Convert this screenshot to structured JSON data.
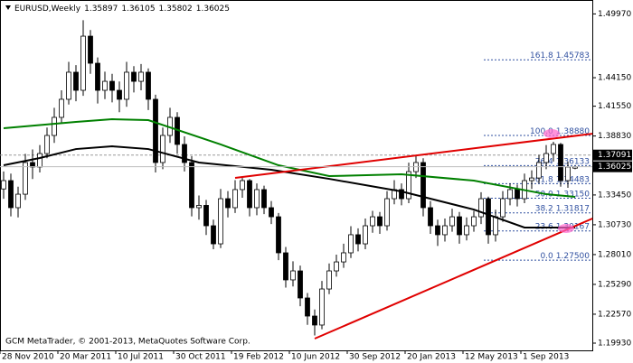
{
  "chart_data": {
    "type": "candlestick",
    "symbol": "EURUSD,Weekly",
    "footer": "GCM MetaTrader, © 2001-2013, MetaQuotes Software Corp.",
    "categories": [
      "28 Nov 2010",
      null,
      null,
      null,
      null,
      null,
      null,
      null,
      "20 Mar 2011",
      null,
      null,
      null,
      null,
      null,
      null,
      null,
      "10 Jul 2011",
      null,
      null,
      null,
      null,
      null,
      null,
      null,
      "30 Oct 2011",
      null,
      null,
      null,
      null,
      null,
      null,
      null,
      "19 Feb 2012",
      null,
      null,
      null,
      null,
      null,
      null,
      null,
      "10 Jun 2012",
      null,
      null,
      null,
      null,
      null,
      null,
      null,
      "30 Sep 2012",
      null,
      null,
      null,
      null,
      null,
      null,
      null,
      "20 Jan 2013",
      null,
      null,
      null,
      null,
      null,
      null,
      null,
      "12 May 2013",
      null,
      null,
      null,
      null,
      null,
      null,
      null,
      "1 Sep 2013",
      null,
      null,
      null,
      null,
      null,
      null,
      null
    ],
    "ohlc": {
      "open": [
        1.34,
        1.3476,
        1.3229,
        1.3352,
        1.3641,
        1.36,
        1.3723,
        1.3888,
        1.4053,
        1.4218,
        1.4465,
        1.43,
        1.4794,
        1.4547,
        1.43,
        1.4382,
        1.43,
        1.4218,
        1.4465,
        1.4382,
        1.4465,
        1.4218,
        1.3641,
        1.3888,
        1.4053,
        1.3806,
        1.3641,
        1.3229,
        1.325,
        1.3064,
        1.2899,
        1.3311,
        1.3229,
        1.3394,
        1.3476,
        1.3229,
        1.3394,
        1.3229,
        1.3146,
        1.2817,
        1.257,
        1.2652,
        1.2405,
        1.224,
        1.2158,
        1.2487,
        1.2652,
        1.2734,
        1.2817,
        1.2982,
        1.2899,
        1.3064,
        1.3146,
        1.3064,
        1.3311,
        1.3394,
        1.3311,
        1.3558,
        1.3641,
        1.3229,
        1.3064,
        1.2982,
        1.3064,
        1.3146,
        1.2982,
        1.3064,
        1.3146,
        1.3311,
        1.2982,
        1.3146,
        1.3311,
        1.3394,
        1.3311,
        1.3476,
        1.35,
        1.3641,
        1.3723,
        1.3806,
        1.3476,
        1.35897
      ],
      "high": [
        1.356,
        1.354,
        1.342,
        1.372,
        1.376,
        1.38,
        1.396,
        1.414,
        1.43,
        1.456,
        1.453,
        1.494,
        1.485,
        1.46,
        1.447,
        1.445,
        1.438,
        1.456,
        1.452,
        1.454,
        1.45,
        1.426,
        1.396,
        1.414,
        1.41,
        1.388,
        1.37,
        1.334,
        1.33,
        1.312,
        1.34,
        1.338,
        1.348,
        1.35,
        1.349,
        1.345,
        1.343,
        1.329,
        1.318,
        1.287,
        1.274,
        1.27,
        1.245,
        1.23,
        1.256,
        1.272,
        1.28,
        1.29,
        1.306,
        1.304,
        1.313,
        1.32,
        1.319,
        1.338,
        1.348,
        1.345,
        1.364,
        1.371,
        1.368,
        1.329,
        1.312,
        1.313,
        1.322,
        1.319,
        1.314,
        1.32,
        1.337,
        1.333,
        1.321,
        1.338,
        1.345,
        1.344,
        1.354,
        1.357,
        1.371,
        1.38,
        1.383,
        1.382,
        1.365,
        1.36105
      ],
      "low": [
        1.331,
        1.315,
        1.314,
        1.33,
        1.349,
        1.355,
        1.368,
        1.382,
        1.4,
        1.417,
        1.42,
        1.425,
        1.445,
        1.418,
        1.422,
        1.419,
        1.41,
        1.415,
        1.428,
        1.43,
        1.412,
        1.355,
        1.358,
        1.382,
        1.372,
        1.356,
        1.315,
        1.312,
        1.298,
        1.285,
        1.286,
        1.314,
        1.318,
        1.332,
        1.315,
        1.316,
        1.317,
        1.308,
        1.275,
        1.25,
        1.251,
        1.233,
        1.216,
        1.2063,
        1.212,
        1.244,
        1.26,
        1.268,
        1.277,
        1.283,
        1.285,
        1.3,
        1.299,
        1.302,
        1.326,
        1.325,
        1.327,
        1.35,
        1.315,
        1.299,
        1.288,
        1.292,
        1.301,
        1.29,
        1.293,
        1.301,
        1.308,
        1.29,
        1.292,
        1.31,
        1.325,
        1.324,
        1.327,
        1.34,
        1.345,
        1.358,
        1.365,
        1.342,
        1.341,
        1.35802
      ],
      "close": [
        1.3476,
        1.3229,
        1.3352,
        1.3641,
        1.36,
        1.3723,
        1.3888,
        1.4053,
        1.4218,
        1.4465,
        1.43,
        1.4794,
        1.4547,
        1.43,
        1.4382,
        1.43,
        1.4218,
        1.4465,
        1.4382,
        1.4465,
        1.4218,
        1.3641,
        1.3888,
        1.4053,
        1.3806,
        1.3641,
        1.3229,
        1.325,
        1.3064,
        1.2899,
        1.3311,
        1.3229,
        1.3394,
        1.3476,
        1.3229,
        1.3394,
        1.3229,
        1.3146,
        1.2817,
        1.257,
        1.2652,
        1.2405,
        1.224,
        1.2158,
        1.2487,
        1.2652,
        1.2734,
        1.2817,
        1.2982,
        1.2899,
        1.3064,
        1.3146,
        1.3064,
        1.3311,
        1.3394,
        1.3311,
        1.3558,
        1.3641,
        1.3229,
        1.3064,
        1.2982,
        1.3064,
        1.3146,
        1.2982,
        1.3064,
        1.3146,
        1.3311,
        1.2982,
        1.3146,
        1.3311,
        1.3394,
        1.3311,
        1.3476,
        1.35,
        1.3641,
        1.3723,
        1.3806,
        1.3476,
        1.36,
        1.36025
      ]
    },
    "lines": [
      {
        "color": "#008000",
        "x": [
          0,
          10,
          15,
          20,
          30,
          38,
          45,
          55,
          65,
          75,
          79
        ],
        "values": [
          1.3954,
          1.4012,
          1.4036,
          1.4028,
          1.3806,
          1.3616,
          1.3517,
          1.3534,
          1.3476,
          1.3352,
          1.3328
        ]
      },
      {
        "color": "#000000",
        "x": [
          0,
          5,
          10,
          15,
          20,
          27,
          37,
          45,
          55,
          65,
          72,
          79
        ],
        "values": [
          1.3616,
          1.3682,
          1.3764,
          1.3789,
          1.3764,
          1.3641,
          1.3575,
          1.3492,
          1.3377,
          1.3212,
          1.3048,
          1.3048
        ]
      }
    ],
    "trendlines": [
      {
        "color": "#e00000",
        "x": [
          32,
          81.4
        ],
        "values": [
          1.3501,
          1.3904
        ]
      },
      {
        "color": "#e00000",
        "x": [
          43,
          81.4
        ],
        "values": [
          1.2034,
          1.313
        ]
      }
    ],
    "fibo": {
      "color": "#3050a0",
      "levels": [
        {
          "ratio": "161.8",
          "price": 1.45783
        },
        {
          "ratio": "100.0",
          "price": {
            "value": 1.3888,
            "label": "1.38880"
          }
        },
        {
          "ratio": "76.4",
          "price": 1.36133
        },
        {
          "ratio": "61.8",
          "price": 1.34483
        },
        {
          "ratio": "50.0",
          "price": {
            "value": 1.3315,
            "label": "1.33150"
          }
        },
        {
          "ratio": "38.2",
          "price": 1.31817
        },
        {
          "ratio": "23.6",
          "price": 1.30167
        },
        {
          "ratio": "0.0",
          "price": {
            "value": 1.275,
            "label": "1.27500"
          }
        }
      ]
    },
    "hline": 1.37091,
    "ylim": [
      1.1927,
      1.5124
    ],
    "yticks": [
      {
        "value": 1.4997,
        "label": "1.49970"
      },
      {
        "value": 1.4415,
        "label": "1.44150"
      },
      {
        "value": 1.4155,
        "label": "1.41550"
      },
      {
        "value": 1.3883,
        "label": "1.38830"
      },
      {
        "value": 1.3345,
        "label": "1.33450"
      },
      {
        "value": 1.3073,
        "label": "1.30730"
      },
      {
        "value": 1.2801,
        "label": "1.28010"
      },
      {
        "value": 1.2529,
        "label": "1.25290"
      },
      {
        "value": 1.2257,
        "label": "1.22570"
      },
      {
        "value": 1.1993,
        "label": "1.19930"
      }
    ]
  }
}
